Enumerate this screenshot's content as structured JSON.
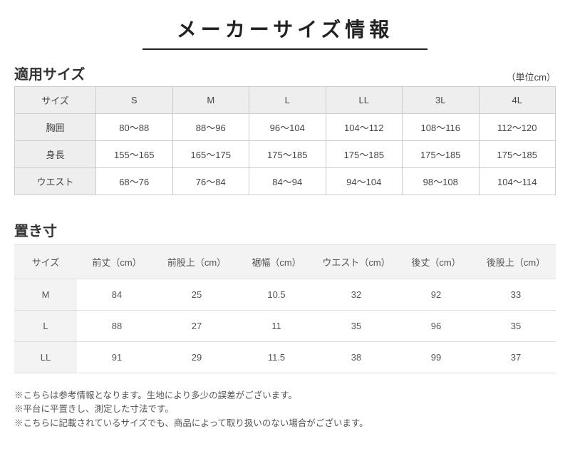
{
  "page_title": "メーカーサイズ情報",
  "section1": {
    "title": "適用サイズ",
    "unit_label": "（単位cm）",
    "size_label": "サイズ",
    "columns": [
      "S",
      "M",
      "L",
      "LL",
      "3L",
      "4L"
    ],
    "rows": [
      {
        "label": "胸囲",
        "cells": [
          "80～88",
          "88～96",
          "96～104",
          "104～112",
          "108～116",
          "112～120"
        ]
      },
      {
        "label": "身長",
        "cells": [
          "155～165",
          "165～175",
          "175～185",
          "175～185",
          "175～185",
          "175～185"
        ]
      },
      {
        "label": "ウエスト",
        "cells": [
          "68～76",
          "76～84",
          "84～94",
          "94～104",
          "98～108",
          "104～114"
        ]
      }
    ]
  },
  "section2": {
    "title": "置き寸",
    "size_label": "サイズ",
    "columns": [
      "前丈（cm）",
      "前股上（cm）",
      "裾幅（cm）",
      "ウエスト（cm）",
      "後丈（cm）",
      "後股上（cm）"
    ],
    "rows": [
      {
        "label": "M",
        "cells": [
          "84",
          "25",
          "10.5",
          "32",
          "92",
          "33"
        ]
      },
      {
        "label": "L",
        "cells": [
          "88",
          "27",
          "11",
          "35",
          "96",
          "35"
        ]
      },
      {
        "label": "LL",
        "cells": [
          "91",
          "29",
          "11.5",
          "38",
          "99",
          "37"
        ]
      }
    ]
  },
  "notes": [
    "※こちらは参考情報となります。生地により多少の誤差がございます。",
    "※平台に平置きし、測定した寸法です。",
    "※こちらに記載されているサイズでも、商品によって取り扱いのない場合がございます。"
  ],
  "colors": {
    "border": "#cccccc",
    "header_bg": "#eeeeee",
    "header_bg2": "#f3f3f3",
    "text": "#333333",
    "background": "#ffffff"
  }
}
